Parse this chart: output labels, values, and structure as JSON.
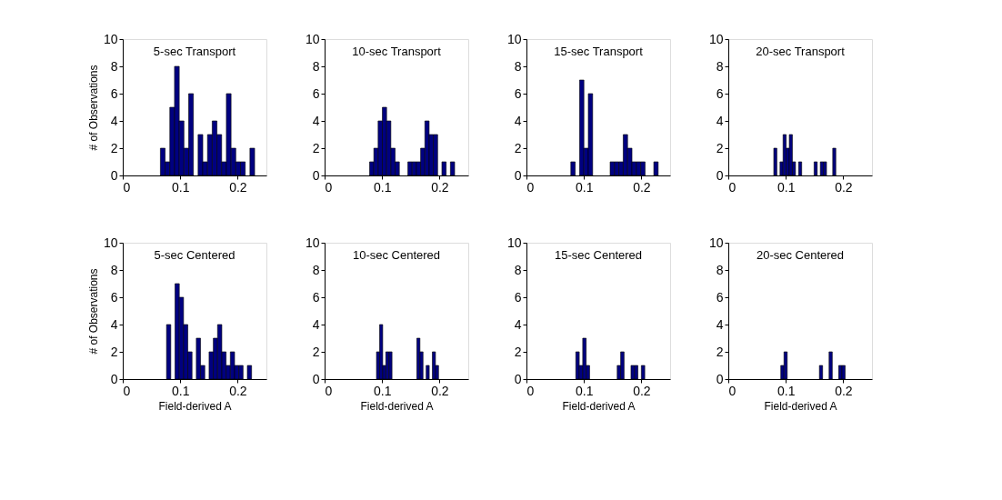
{
  "chart_data": [
    {
      "type": "histogram",
      "annotations": [
        "5-sec Transport"
      ],
      "ylabel": "# of Observations",
      "color": "#000080",
      "xlim": [
        0,
        0.25
      ],
      "xticks": [
        0,
        0.1,
        0.2
      ],
      "ylim": [
        0,
        10
      ],
      "yticks": [
        0,
        2,
        4,
        6,
        8,
        10
      ],
      "grid": false,
      "bins": [
        0.0655,
        0.0737,
        0.0819,
        0.0901,
        0.0983,
        0.1065,
        0.1147,
        0.1229,
        0.1311,
        0.1393,
        0.1475,
        0.1557,
        0.1639,
        0.1721,
        0.1803,
        0.1885,
        0.1967,
        0.2049,
        0.2131,
        0.2213,
        0.2295
      ],
      "values": [
        2,
        1,
        5,
        8,
        4,
        2,
        6,
        0,
        3,
        1,
        3,
        4,
        3,
        1,
        6,
        2,
        1,
        1,
        0,
        2
      ]
    },
    {
      "type": "histogram",
      "annotations": [
        "10-sec Transport"
      ],
      "color": "#000080",
      "xlim": [
        0,
        0.25
      ],
      "xticks": [
        0,
        0.1,
        0.2
      ],
      "ylim": [
        0,
        10
      ],
      "yticks": [
        0,
        2,
        4,
        6,
        8,
        10
      ],
      "grid": false,
      "bins": [
        0.0783,
        0.0857,
        0.0931,
        0.1005,
        0.1079,
        0.1153,
        0.1227,
        0.1301,
        0.1375,
        0.1449,
        0.1523,
        0.1597,
        0.1671,
        0.1745,
        0.1819,
        0.1893,
        0.1967,
        0.2041,
        0.2115,
        0.2189,
        0.2263
      ],
      "values": [
        1,
        2,
        4,
        5,
        4,
        2,
        1,
        0,
        0,
        1,
        1,
        1,
        2,
        4,
        3,
        3,
        0,
        1,
        0,
        1
      ]
    },
    {
      "type": "histogram",
      "annotations": [
        "15-sec Transport"
      ],
      "color": "#000080",
      "xlim": [
        0,
        0.25
      ],
      "xticks": [
        0,
        0.1,
        0.2
      ],
      "ylim": [
        0,
        10
      ],
      "yticks": [
        0,
        2,
        4,
        6,
        8,
        10
      ],
      "grid": false,
      "bins": [
        0.0772,
        0.0848,
        0.0924,
        0.1,
        0.1076,
        0.1152,
        0.1228,
        0.1304,
        0.138,
        0.1456,
        0.1532,
        0.1608,
        0.1684,
        0.176,
        0.1836,
        0.1912,
        0.1988,
        0.2064,
        0.214,
        0.2216,
        0.2292
      ],
      "values": [
        1,
        0,
        7,
        2,
        6,
        0,
        0,
        0,
        0,
        1,
        1,
        1,
        3,
        2,
        1,
        1,
        1,
        0,
        0,
        1
      ]
    },
    {
      "type": "histogram",
      "annotations": [
        "20-sec Transport"
      ],
      "color": "#000080",
      "xlim": [
        0,
        0.25
      ],
      "xticks": [
        0,
        0.1,
        0.2
      ],
      "ylim": [
        0,
        10
      ],
      "yticks": [
        0,
        2,
        4,
        6,
        8,
        10
      ],
      "grid": false,
      "bins": [
        0.0791,
        0.0845,
        0.0899,
        0.0953,
        0.1007,
        0.1061,
        0.1115,
        0.1169,
        0.1223,
        0.1277,
        0.1331,
        0.1385,
        0.1439,
        0.1493,
        0.1547,
        0.1601,
        0.1655,
        0.1709,
        0.1763,
        0.1817,
        0.1871
      ],
      "values": [
        2,
        0,
        1,
        3,
        2,
        3,
        1,
        0,
        1,
        0,
        0,
        0,
        0,
        1,
        0,
        1,
        1,
        0,
        0,
        2
      ]
    },
    {
      "type": "histogram",
      "annotations": [
        "5-sec Centered"
      ],
      "ylabel": "# of Observations",
      "xlabel": "Field-derived A",
      "color": "#000080",
      "xlim": [
        0,
        0.25
      ],
      "xticks": [
        0,
        0.1,
        0.2
      ],
      "ylim": [
        0,
        10
      ],
      "yticks": [
        0,
        2,
        4,
        6,
        8,
        10
      ],
      "grid": false,
      "bins": [
        0.0762,
        0.0836,
        0.091,
        0.0984,
        0.1058,
        0.1132,
        0.1206,
        0.128,
        0.1354,
        0.1428,
        0.1502,
        0.1576,
        0.165,
        0.1724,
        0.1798,
        0.1872,
        0.1946,
        0.202,
        0.2094,
        0.2168,
        0.2242
      ],
      "values": [
        4,
        0,
        7,
        6,
        4,
        2,
        0,
        3,
        1,
        0,
        2,
        3,
        4,
        2,
        1,
        2,
        1,
        1,
        0,
        1
      ]
    },
    {
      "type": "histogram",
      "annotations": [
        "10-sec Centered"
      ],
      "xlabel": "Field-derived A",
      "color": "#000080",
      "xlim": [
        0,
        0.25
      ],
      "xticks": [
        0,
        0.1,
        0.2
      ],
      "ylim": [
        0,
        10
      ],
      "yticks": [
        0,
        2,
        4,
        6,
        8,
        10
      ],
      "grid": false,
      "bins": [
        0.0903,
        0.0957,
        0.1011,
        0.1065,
        0.1119,
        0.1173,
        0.1227,
        0.1281,
        0.1335,
        0.1389,
        0.1443,
        0.1497,
        0.1551,
        0.1605,
        0.1659,
        0.1713,
        0.1767,
        0.1821,
        0.1875,
        0.1929,
        0.1983
      ],
      "values": [
        2,
        4,
        1,
        2,
        2,
        0,
        0,
        0,
        0,
        0,
        0,
        0,
        0,
        3,
        2,
        0,
        1,
        0,
        2,
        1
      ]
    },
    {
      "type": "histogram",
      "annotations": [
        "15-sec Centered"
      ],
      "xlabel": "Field-derived A",
      "color": "#000080",
      "xlim": [
        0,
        0.25
      ],
      "xticks": [
        0,
        0.1,
        0.2
      ],
      "ylim": [
        0,
        10
      ],
      "yticks": [
        0,
        2,
        4,
        6,
        8,
        10
      ],
      "grid": false,
      "bins": [
        0.0859,
        0.0919,
        0.0979,
        0.1039,
        0.1099,
        0.1159,
        0.1219,
        0.1279,
        0.1339,
        0.1399,
        0.1459,
        0.1519,
        0.1579,
        0.1639,
        0.1699,
        0.1759,
        0.1819,
        0.1879,
        0.1939,
        0.1999,
        0.2059
      ],
      "values": [
        2,
        1,
        3,
        1,
        0,
        0,
        0,
        0,
        0,
        0,
        0,
        0,
        1,
        2,
        0,
        0,
        1,
        1,
        0,
        1
      ]
    },
    {
      "type": "histogram",
      "annotations": [
        "20-sec Centered"
      ],
      "xlabel": "Field-derived A",
      "color": "#000080",
      "xlim": [
        0,
        0.25
      ],
      "xticks": [
        0,
        0.1,
        0.2
      ],
      "ylim": [
        0,
        10
      ],
      "yticks": [
        0,
        2,
        4,
        6,
        8,
        10
      ],
      "grid": false,
      "bins": [
        0.0913,
        0.0969,
        0.1025,
        0.1081,
        0.1137,
        0.1193,
        0.1249,
        0.1305,
        0.1361,
        0.1417,
        0.1473,
        0.1529,
        0.1585,
        0.1641,
        0.1697,
        0.1753,
        0.1809,
        0.1865,
        0.1921,
        0.1977,
        0.2033
      ],
      "values": [
        1,
        2,
        0,
        0,
        0,
        0,
        0,
        0,
        0,
        0,
        0,
        0,
        1,
        0,
        0,
        2,
        0,
        0,
        1,
        1
      ]
    }
  ]
}
